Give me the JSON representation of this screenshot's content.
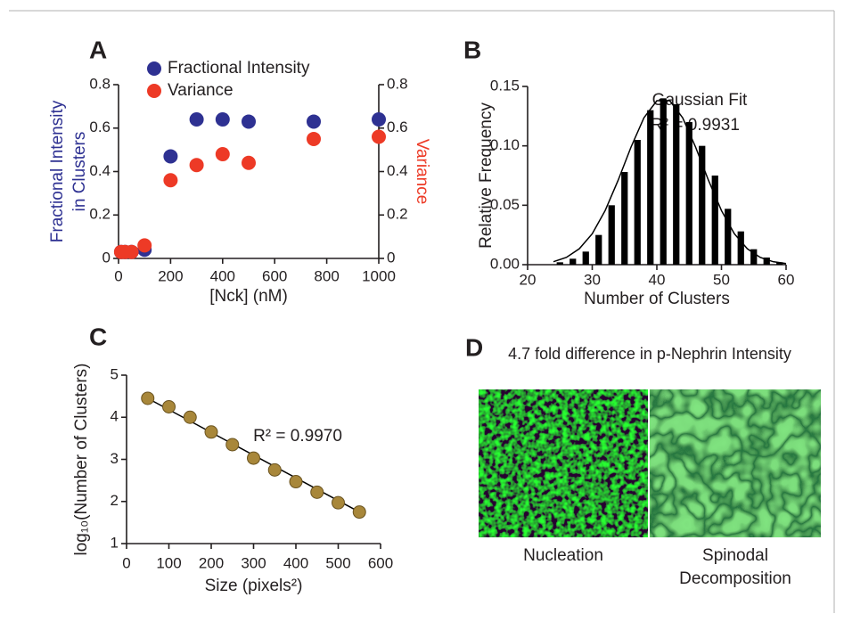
{
  "chart_data": [
    {
      "type": "scatter",
      "panel_label": "A",
      "x": [
        10,
        25,
        50,
        100,
        200,
        300,
        400,
        500,
        750,
        1000
      ],
      "series": [
        {
          "name": "Fractional Intensity",
          "color": "#2e3192",
          "axis": "y",
          "values": [
            0.03,
            0.03,
            0.03,
            0.04,
            0.47,
            0.64,
            0.64,
            0.63,
            0.63,
            0.64
          ]
        },
        {
          "name": "Variance",
          "color": "#ed3a26",
          "axis": "y2",
          "values": [
            0.03,
            0.03,
            0.03,
            0.06,
            0.36,
            0.43,
            0.48,
            0.44,
            0.55,
            0.56
          ]
        }
      ],
      "xlabel": "[Nck] (nM)",
      "ylabel": [
        "Fractional Intensity",
        "in Clusters"
      ],
      "y2label": "Variance",
      "xlim": [
        0,
        1000
      ],
      "xticks": [
        0,
        200,
        400,
        600,
        800,
        1000
      ],
      "ylim": [
        0,
        0.8
      ],
      "yticks": [
        0,
        0.2,
        0.4,
        0.6,
        0.8
      ],
      "y2lim": [
        0,
        0.8
      ],
      "y2ticks": [
        0,
        0.2,
        0.4,
        0.6,
        0.8
      ],
      "legend": "top-left"
    },
    {
      "type": "bar",
      "panel_label": "B",
      "x": [
        25,
        27,
        29,
        31,
        33,
        35,
        37,
        39,
        41,
        43,
        45,
        47,
        49,
        51,
        53,
        55,
        57,
        59
      ],
      "values": [
        0.002,
        0.005,
        0.011,
        0.025,
        0.05,
        0.078,
        0.105,
        0.13,
        0.14,
        0.135,
        0.12,
        0.1,
        0.075,
        0.047,
        0.028,
        0.013,
        0.006,
        0.002
      ],
      "color": "#000000",
      "fit": {
        "x": [
          24,
          26,
          28,
          30,
          32,
          34,
          36,
          38,
          40,
          42,
          44,
          46,
          48,
          50,
          52,
          54,
          56,
          58,
          60
        ],
        "values": [
          0.0025,
          0.0061,
          0.0134,
          0.026,
          0.0455,
          0.0709,
          0.0989,
          0.1236,
          0.138,
          0.138,
          0.1236,
          0.0989,
          0.0709,
          0.0455,
          0.026,
          0.0134,
          0.0061,
          0.0025,
          0.0009
        ]
      },
      "annotations": [
        "Gaussian Fit",
        "R² = 0.9931"
      ],
      "xlabel": "Number of Clusters",
      "ylabel": "Relative Frequency",
      "xlim": [
        20,
        60
      ],
      "xticks": [
        20,
        30,
        40,
        50,
        60
      ],
      "ylim": [
        0,
        0.15
      ],
      "yticks": [
        {
          "value": 0,
          "label": "0.00"
        },
        {
          "value": 0.05,
          "label": "0.05"
        },
        {
          "value": 0.1,
          "label": "0.10"
        },
        {
          "value": 0.15,
          "label": "0.15"
        }
      ]
    },
    {
      "type": "scatter",
      "panel_label": "C",
      "x": [
        50,
        100,
        150,
        200,
        250,
        300,
        350,
        400,
        450,
        500,
        550
      ],
      "series": [
        {
          "color": "#a8873a",
          "values": [
            4.45,
            4.25,
            4.0,
            3.65,
            3.35,
            3.03,
            2.75,
            2.47,
            2.22,
            1.97,
            1.75
          ]
        }
      ],
      "fit": {
        "x": [
          50,
          550
        ],
        "values": [
          4.45,
          1.75
        ]
      },
      "annotations": [
        "R² =  0.9970"
      ],
      "xlabel": "Size (pixels²)",
      "ylabel": "log₁₀(Number of Clusters)",
      "xlim": [
        0,
        600
      ],
      "xticks": [
        0,
        100,
        200,
        300,
        400,
        500,
        600
      ],
      "ylim": [
        1,
        5
      ],
      "yticks": [
        1,
        2,
        3,
        4,
        5
      ]
    }
  ],
  "panel_d": {
    "panel_label": "D",
    "title": "4.7 fold difference in p-Nephrin Intensity",
    "images": [
      {
        "caption": [
          "Nucleation"
        ]
      },
      {
        "caption": [
          "Spinodal",
          "Decomposition"
        ]
      }
    ]
  }
}
